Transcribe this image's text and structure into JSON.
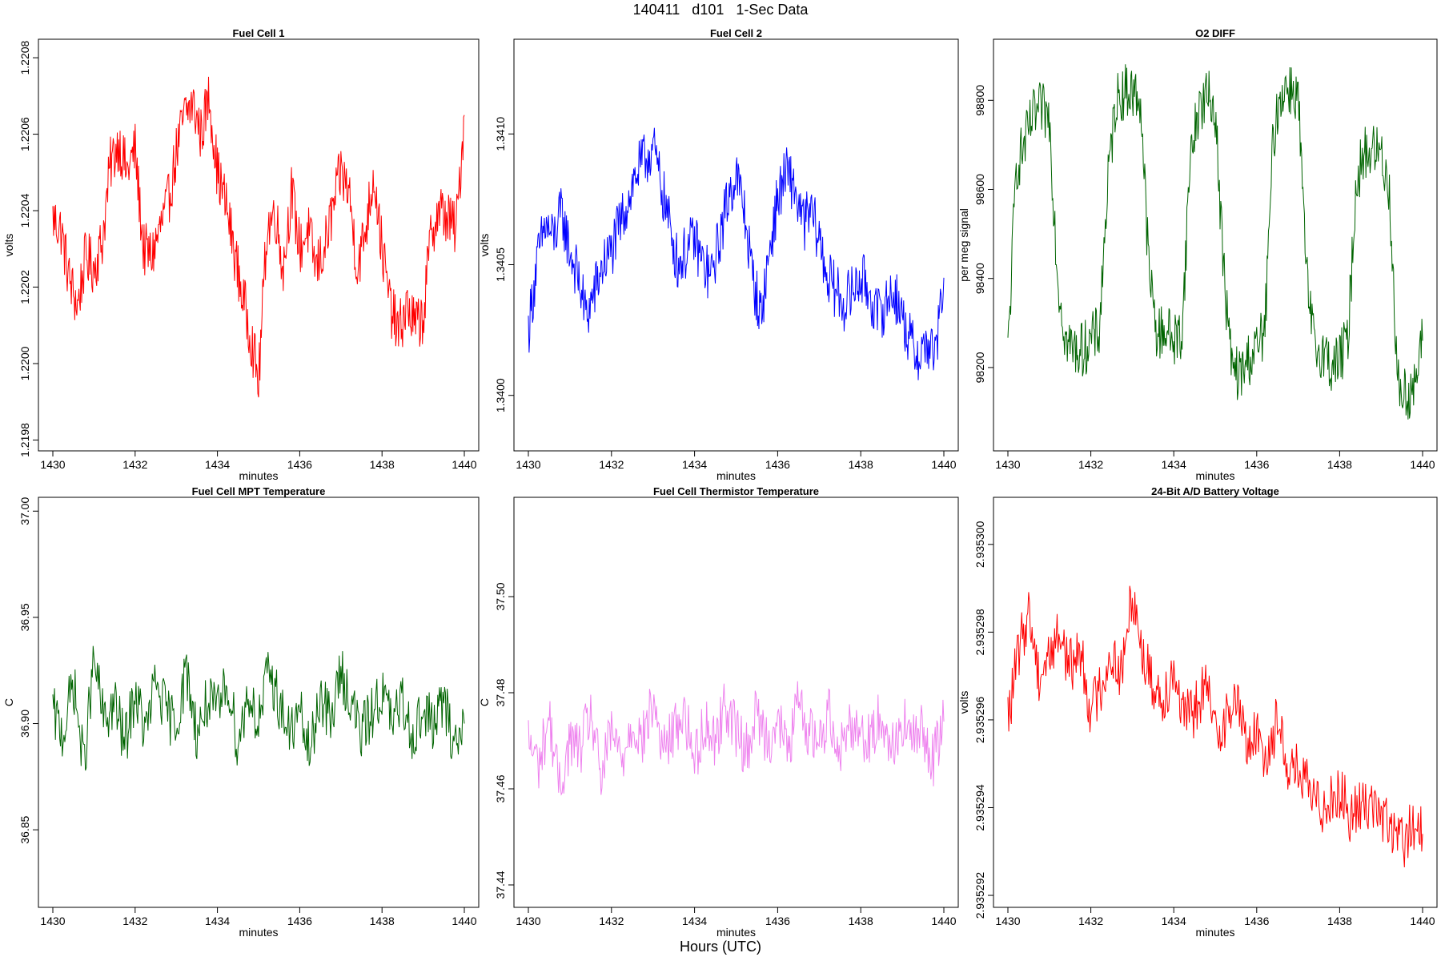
{
  "page": {
    "title": "140411   d101   1-Sec Data",
    "footer": "Hours (UTC)"
  },
  "chart_data": [
    {
      "type": "line",
      "title": "Fuel Cell 1",
      "xlabel": "minutes",
      "ylabel": "volts",
      "color": "#ff0000",
      "xlim": [
        1430,
        1440
      ],
      "xticks": [
        "1430",
        "1432",
        "1434",
        "1436",
        "1438",
        "1440"
      ],
      "ylim": [
        1.21978,
        1.22084
      ],
      "yticks": [
        "1.2198",
        "1.2200",
        "1.2202",
        "1.2204",
        "1.2206",
        "1.2208"
      ],
      "series": [
        {
          "x": [
            1430.0,
            1430.2,
            1430.4,
            1430.6,
            1430.8,
            1431.0,
            1431.2,
            1431.4,
            1431.6,
            1431.8,
            1432.0,
            1432.2,
            1432.4,
            1432.6,
            1432.8,
            1433.0,
            1433.2,
            1433.4,
            1433.6,
            1433.8,
            1434.0,
            1434.2,
            1434.4,
            1434.6,
            1434.8,
            1435.0,
            1435.2,
            1435.4,
            1435.6,
            1435.8,
            1436.0,
            1436.2,
            1436.4,
            1436.6,
            1436.8,
            1437.0,
            1437.2,
            1437.4,
            1437.6,
            1437.8,
            1438.0,
            1438.2,
            1438.4,
            1438.6,
            1438.8,
            1439.0,
            1439.2,
            1439.4,
            1439.6,
            1439.8,
            1440.0
          ],
          "values": [
            1.22038,
            1.22035,
            1.22022,
            1.22015,
            1.22028,
            1.22025,
            1.22032,
            1.22052,
            1.22058,
            1.2205,
            1.22056,
            1.2203,
            1.22028,
            1.22035,
            1.22042,
            1.22055,
            1.22065,
            1.22068,
            1.2206,
            1.2207,
            1.2205,
            1.22042,
            1.2203,
            1.22018,
            1.22008,
            1.21995,
            1.22035,
            1.2204,
            1.22025,
            1.22045,
            1.2203,
            1.22035,
            1.22025,
            1.2203,
            1.2204,
            1.2205,
            1.22045,
            1.22025,
            1.22035,
            1.2205,
            1.2203,
            1.22015,
            1.22008,
            1.22015,
            1.2201,
            1.22012,
            1.22035,
            1.2204,
            1.22038,
            1.22035,
            1.22065
          ]
        }
      ]
    },
    {
      "type": "line",
      "title": "Fuel Cell 2",
      "xlabel": "minutes",
      "ylabel": "volts",
      "color": "#0000ff",
      "xlim": [
        1430,
        1440
      ],
      "xticks": [
        "1430",
        "1432",
        "1434",
        "1436",
        "1438",
        "1440"
      ],
      "ylim": [
        1.3398,
        1.34135
      ],
      "yticks": [
        "1.3400",
        "1.3405",
        "1.3410"
      ],
      "series": [
        {
          "x": [
            1430.0,
            1430.2,
            1430.4,
            1430.6,
            1430.8,
            1431.0,
            1431.2,
            1431.4,
            1431.6,
            1431.8,
            1432.0,
            1432.2,
            1432.4,
            1432.6,
            1432.8,
            1433.0,
            1433.2,
            1433.4,
            1433.6,
            1433.8,
            1434.0,
            1434.2,
            1434.4,
            1434.6,
            1434.8,
            1435.0,
            1435.2,
            1435.4,
            1435.6,
            1435.8,
            1436.0,
            1436.2,
            1436.4,
            1436.6,
            1436.8,
            1437.0,
            1437.2,
            1437.4,
            1437.6,
            1437.8,
            1438.0,
            1438.2,
            1438.4,
            1438.6,
            1438.8,
            1439.0,
            1439.2,
            1439.4,
            1439.6,
            1439.8,
            1440.0
          ],
          "values": [
            1.34025,
            1.3405,
            1.34065,
            1.3406,
            1.3407,
            1.34055,
            1.34045,
            1.3403,
            1.3404,
            1.3405,
            1.34055,
            1.34065,
            1.34075,
            1.34085,
            1.3409,
            1.34095,
            1.3408,
            1.34065,
            1.3405,
            1.34055,
            1.3406,
            1.3405,
            1.34045,
            1.3406,
            1.34075,
            1.34085,
            1.3407,
            1.34045,
            1.3403,
            1.34055,
            1.34075,
            1.34085,
            1.3408,
            1.34065,
            1.3407,
            1.3406,
            1.34045,
            1.3404,
            1.34035,
            1.3404,
            1.34045,
            1.3404,
            1.3403,
            1.34035,
            1.3404,
            1.3403,
            1.3402,
            1.34015,
            1.3402,
            1.34015,
            1.34045
          ]
        }
      ]
    },
    {
      "type": "line",
      "title": "O2 DIFF",
      "xlabel": "minutes",
      "ylabel": "per meg signal",
      "color": "#006400",
      "xlim": [
        1430,
        1440
      ],
      "xticks": [
        "1430",
        "1432",
        "1434",
        "1436",
        "1438",
        "1440"
      ],
      "ylim": [
        98020,
        98930
      ],
      "yticks": [
        "98200",
        "98400",
        "98600",
        "98800"
      ],
      "series": [
        {
          "x": [
            1430.0,
            1430.2,
            1430.4,
            1430.6,
            1430.8,
            1431.0,
            1431.2,
            1431.4,
            1431.6,
            1431.8,
            1432.0,
            1432.2,
            1432.4,
            1432.6,
            1432.8,
            1433.0,
            1433.2,
            1433.4,
            1433.6,
            1433.8,
            1434.0,
            1434.2,
            1434.4,
            1434.6,
            1434.8,
            1435.0,
            1435.2,
            1435.4,
            1435.6,
            1435.8,
            1436.0,
            1436.2,
            1436.4,
            1436.6,
            1436.8,
            1437.0,
            1437.2,
            1437.4,
            1437.6,
            1437.8,
            1438.0,
            1438.2,
            1438.4,
            1438.6,
            1438.8,
            1439.0,
            1439.2,
            1439.4,
            1439.6,
            1439.8,
            1440.0
          ],
          "values": [
            98230,
            98650,
            98700,
            98760,
            98780,
            98760,
            98400,
            98260,
            98240,
            98240,
            98260,
            98280,
            98600,
            98800,
            98820,
            98820,
            98800,
            98420,
            98270,
            98290,
            98260,
            98280,
            98680,
            98780,
            98810,
            98780,
            98420,
            98200,
            98180,
            98220,
            98240,
            98290,
            98720,
            98820,
            98830,
            98810,
            98400,
            98240,
            98240,
            98200,
            98220,
            98260,
            98620,
            98680,
            98690,
            98680,
            98600,
            98160,
            98140,
            98150,
            98260
          ]
        }
      ]
    },
    {
      "type": "line",
      "title": "Fuel Cell MPT Temperature",
      "xlabel": "minutes",
      "ylabel": "C",
      "color": "#006400",
      "xlim": [
        1430,
        1440
      ],
      "xticks": [
        "1430",
        "1432",
        "1434",
        "1436",
        "1438",
        "1440"
      ],
      "ylim": [
        36.815,
        37.005
      ],
      "yticks": [
        "36.85",
        "36.90",
        "36.95",
        "37.00"
      ],
      "series": [
        {
          "x": [
            1430.0,
            1430.25,
            1430.5,
            1430.75,
            1431.0,
            1431.25,
            1431.5,
            1431.75,
            1432.0,
            1432.25,
            1432.5,
            1432.75,
            1433.0,
            1433.25,
            1433.5,
            1433.75,
            1434.0,
            1434.25,
            1434.5,
            1434.75,
            1435.0,
            1435.25,
            1435.5,
            1435.75,
            1436.0,
            1436.25,
            1436.5,
            1436.75,
            1437.0,
            1437.25,
            1437.5,
            1437.75,
            1438.0,
            1438.25,
            1438.5,
            1438.75,
            1439.0,
            1439.25,
            1439.5,
            1439.75,
            1440.0
          ],
          "values": [
            36.905,
            36.895,
            36.92,
            36.88,
            36.93,
            36.9,
            36.91,
            36.89,
            36.915,
            36.895,
            36.92,
            36.905,
            36.9,
            36.925,
            36.895,
            36.91,
            36.905,
            36.92,
            36.89,
            36.915,
            36.9,
            36.925,
            36.91,
            36.895,
            36.905,
            36.885,
            36.915,
            36.9,
            36.925,
            36.91,
            36.895,
            36.905,
            36.915,
            36.9,
            36.91,
            36.895,
            36.905,
            36.9,
            36.91,
            36.89,
            36.9
          ]
        }
      ]
    },
    {
      "type": "line",
      "title": "Fuel Cell Thermistor Temperature",
      "xlabel": "minutes",
      "ylabel": "C",
      "color": "#ee82ee",
      "xlim": [
        1430,
        1440
      ],
      "xticks": [
        "1430",
        "1432",
        "1434",
        "1436",
        "1438",
        "1440"
      ],
      "ylim": [
        37.436,
        37.52
      ],
      "yticks": [
        "37.44",
        "37.46",
        "37.48",
        "37.50"
      ],
      "series": [
        {
          "x": [
            1430.0,
            1430.25,
            1430.5,
            1430.75,
            1431.0,
            1431.25,
            1431.5,
            1431.75,
            1432.0,
            1432.25,
            1432.5,
            1432.75,
            1433.0,
            1433.25,
            1433.5,
            1433.75,
            1434.0,
            1434.25,
            1434.5,
            1434.75,
            1435.0,
            1435.25,
            1435.5,
            1435.75,
            1436.0,
            1436.25,
            1436.5,
            1436.75,
            1437.0,
            1437.25,
            1437.5,
            1437.75,
            1438.0,
            1438.25,
            1438.5,
            1438.75,
            1439.0,
            1439.25,
            1439.5,
            1439.75,
            1440.0
          ],
          "values": [
            37.47,
            37.465,
            37.475,
            37.46,
            37.47,
            37.468,
            37.476,
            37.462,
            37.472,
            37.466,
            37.474,
            37.47,
            37.478,
            37.468,
            37.472,
            37.476,
            37.466,
            37.474,
            37.47,
            37.478,
            37.472,
            37.468,
            37.476,
            37.47,
            37.474,
            37.468,
            37.478,
            37.472,
            37.47,
            37.476,
            37.468,
            37.474,
            37.472,
            37.47,
            37.476,
            37.468,
            37.474,
            37.47,
            37.472,
            37.466,
            37.474
          ]
        }
      ]
    },
    {
      "type": "line",
      "title": "24-Bit A/D Battery Voltage",
      "xlabel": "minutes",
      "ylabel": "volts",
      "color": "#ff0000",
      "xlim": [
        1430,
        1440
      ],
      "xticks": [
        "1430",
        "1432",
        "1434",
        "1436",
        "1438",
        "1440"
      ],
      "ylim": [
        2.9352918,
        2.935301
      ],
      "yticks": [
        "2.935292",
        "2.935294",
        "2.935296",
        "2.935298",
        "2.935300"
      ],
      "series": [
        {
          "x": [
            1430.0,
            1430.25,
            1430.5,
            1430.75,
            1431.0,
            1431.25,
            1431.5,
            1431.75,
            1432.0,
            1432.25,
            1432.5,
            1432.75,
            1433.0,
            1433.25,
            1433.5,
            1433.75,
            1434.0,
            1434.25,
            1434.5,
            1434.75,
            1435.0,
            1435.25,
            1435.5,
            1435.75,
            1436.0,
            1436.25,
            1436.5,
            1436.75,
            1437.0,
            1437.25,
            1437.5,
            1437.75,
            1438.0,
            1438.25,
            1438.5,
            1438.75,
            1439.0,
            1439.25,
            1439.5,
            1439.75,
            1440.0
          ],
          "values": [
            2.935296,
            2.9352975,
            2.9352985,
            2.935297,
            2.9352975,
            2.935298,
            2.9352972,
            2.9352976,
            2.9352962,
            2.9352968,
            2.9352975,
            2.935297,
            2.935299,
            2.9352975,
            2.9352968,
            2.9352965,
            2.9352972,
            2.935296,
            2.9352962,
            2.9352968,
            2.9352958,
            2.935296,
            2.9352965,
            2.9352955,
            2.9352956,
            2.9352952,
            2.935296,
            2.935295,
            2.9352948,
            2.9352944,
            2.935294,
            2.9352942,
            2.9352944,
            2.9352938,
            2.935294,
            2.9352942,
            2.9352938,
            2.9352935,
            2.9352932,
            2.9352935,
            2.9352934
          ]
        }
      ]
    }
  ]
}
